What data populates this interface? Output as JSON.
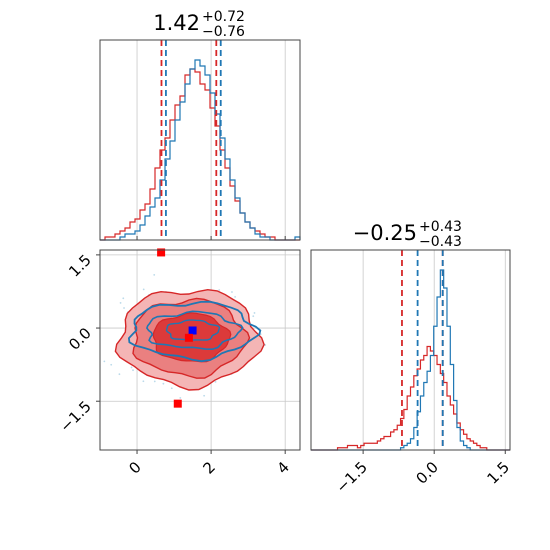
{
  "chart_data": {
    "type": "corner",
    "colors": {
      "blue": "#1f77b4",
      "red": "#d62728",
      "grid": "#c8c8c8",
      "axis": "#444444"
    },
    "params": [
      {
        "title_value": "1.42",
        "title_plus": "+0.72",
        "title_minus": "−0.76",
        "blue_quantiles": [
          0.78,
          1.42,
          2.26
        ],
        "red_quantiles": [
          0.66,
          1.42,
          2.14
        ],
        "hist_range": [
          -1.0,
          4.4
        ],
        "bins": 40,
        "blue_hist": [
          0,
          0,
          0,
          0,
          1,
          2,
          2,
          3,
          5,
          8,
          11,
          14,
          20,
          27,
          33,
          40,
          46,
          52,
          57,
          60,
          58,
          55,
          49,
          42,
          34,
          27,
          20,
          14,
          9,
          6,
          4,
          2,
          1,
          1,
          0,
          0,
          0,
          0,
          0,
          1
        ],
        "red_hist": [
          0,
          1,
          1,
          2,
          3,
          4,
          6,
          7,
          10,
          12,
          17,
          24,
          30,
          34,
          40,
          45,
          48,
          55,
          57,
          56,
          52,
          50,
          44,
          38,
          30,
          24,
          18,
          13,
          9,
          6,
          4,
          3,
          2,
          1,
          1,
          0,
          0,
          0,
          0,
          0
        ]
      },
      {
        "title_value": "−0.25",
        "title_plus": "+0.43",
        "title_minus": "−0.43",
        "blue_quantiles": [
          -0.35,
          -0.05,
          0.18
        ],
        "red_quantiles": [
          -0.68,
          -0.25,
          0.18
        ],
        "hist_range": [
          -2.6,
          1.6
        ],
        "bins": 60,
        "blue_hist": [
          0,
          0,
          0,
          0,
          0,
          0,
          0,
          0,
          0,
          0,
          0,
          0,
          0,
          0,
          0,
          0,
          0,
          0,
          0,
          0,
          0,
          0,
          0,
          0,
          0,
          0,
          0,
          1,
          2,
          3,
          5,
          10,
          17,
          24,
          30,
          35,
          42,
          55,
          68,
          80,
          72,
          55,
          38,
          22,
          10,
          4,
          2,
          1,
          0,
          0,
          0,
          0,
          0,
          0,
          0,
          0,
          0,
          0,
          0,
          0
        ],
        "red_hist": [
          0,
          0,
          0,
          0,
          0,
          0,
          0,
          0,
          1,
          1,
          1,
          2,
          2,
          2,
          1,
          2,
          3,
          3,
          3,
          3,
          4,
          5,
          6,
          6,
          8,
          9,
          11,
          14,
          18,
          24,
          28,
          33,
          36,
          40,
          42,
          46,
          44,
          42,
          38,
          34,
          30,
          24,
          20,
          16,
          12,
          9,
          7,
          5,
          4,
          3,
          2,
          1,
          1,
          0,
          0,
          0,
          0,
          0,
          0,
          0
        ]
      }
    ],
    "scatter_2d": {
      "xlim": [
        -1.0,
        4.4
      ],
      "ylim": [
        -2.5,
        1.6
      ],
      "blue_marker": [
        1.5,
        -0.05
      ],
      "red_marker": [
        1.4,
        -0.2
      ],
      "red_outlier_markers": [
        [
          1.1,
          -1.55
        ],
        [
          0.65,
          1.55
        ]
      ]
    },
    "x_ticks_1": [
      "0",
      "2",
      "4"
    ],
    "x_tick_values_1": [
      0,
      2,
      4
    ],
    "x_ticks_2": [
      "−1.5",
      "0.0",
      "1.5"
    ],
    "x_tick_values_2": [
      -1.5,
      0.0,
      1.5
    ],
    "y_ticks": [
      "1.5",
      "0.0",
      "−1.5"
    ],
    "y_tick_values": [
      1.5,
      0.0,
      -1.5
    ]
  }
}
